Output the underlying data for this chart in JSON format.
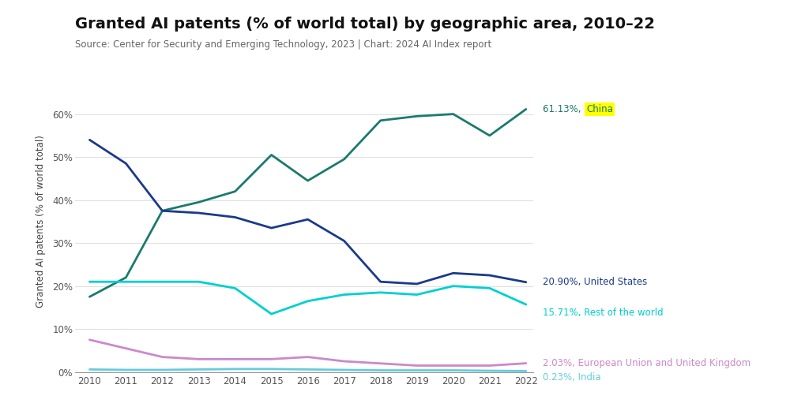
{
  "title": "Granted AI patents (% of world total) by geographic area, 2010–22",
  "subtitle": "Source: Center for Security and Emerging Technology, 2023 | Chart: 2024 AI Index report",
  "ylabel": "Granted AI patents (% of world total)",
  "years": [
    2010,
    2011,
    2012,
    2013,
    2014,
    2015,
    2016,
    2017,
    2018,
    2019,
    2020,
    2021,
    2022
  ],
  "series": {
    "China": {
      "values": [
        17.5,
        22.0,
        37.5,
        39.5,
        42.0,
        50.5,
        44.5,
        49.5,
        58.5,
        59.5,
        60.0,
        55.0,
        61.13
      ],
      "color": "#1a7a6e",
      "label_prefix": "61.13%, ",
      "label_highlight": "China",
      "highlight_bg": "#ffff00",
      "label_yoffset": 0
    },
    "United States": {
      "values": [
        54.0,
        48.5,
        37.5,
        37.0,
        36.0,
        33.5,
        35.5,
        30.5,
        21.0,
        20.5,
        23.0,
        22.5,
        20.9
      ],
      "color": "#1a3a8a",
      "label": "20.90%, United States",
      "label_yoffset": 0
    },
    "Rest of the world": {
      "values": [
        21.0,
        21.0,
        21.0,
        21.0,
        19.5,
        13.5,
        16.5,
        18.0,
        18.5,
        18.0,
        20.0,
        19.5,
        15.71
      ],
      "color": "#00cfcf",
      "label": "15.71%, Rest of the world",
      "label_yoffset": -2
    },
    "European Union and United Kingdom": {
      "values": [
        7.5,
        5.5,
        3.5,
        3.0,
        3.0,
        3.0,
        3.5,
        2.5,
        2.0,
        1.5,
        1.5,
        1.5,
        2.03
      ],
      "color": "#cc88cc",
      "label": "2.03%, European Union and United Kingdom",
      "label_yoffset": 0
    },
    "India": {
      "values": [
        0.6,
        0.5,
        0.5,
        0.6,
        0.7,
        0.7,
        0.6,
        0.5,
        0.4,
        0.4,
        0.4,
        0.3,
        0.23
      ],
      "color": "#66ccdd",
      "label": "0.23%, India",
      "label_yoffset": -1.5
    }
  },
  "ylim": [
    0,
    70
  ],
  "yticks": [
    0,
    10,
    20,
    30,
    40,
    50,
    60
  ],
  "ytick_labels": [
    "0%",
    "10%",
    "20%",
    "30%",
    "40%",
    "50%",
    "60%"
  ],
  "background_color": "#ffffff",
  "title_fontsize": 14,
  "subtitle_fontsize": 8.5,
  "label_fontsize": 8.5,
  "ylabel_fontsize": 8.5,
  "tick_fontsize": 8.5,
  "line_width": 2.0
}
